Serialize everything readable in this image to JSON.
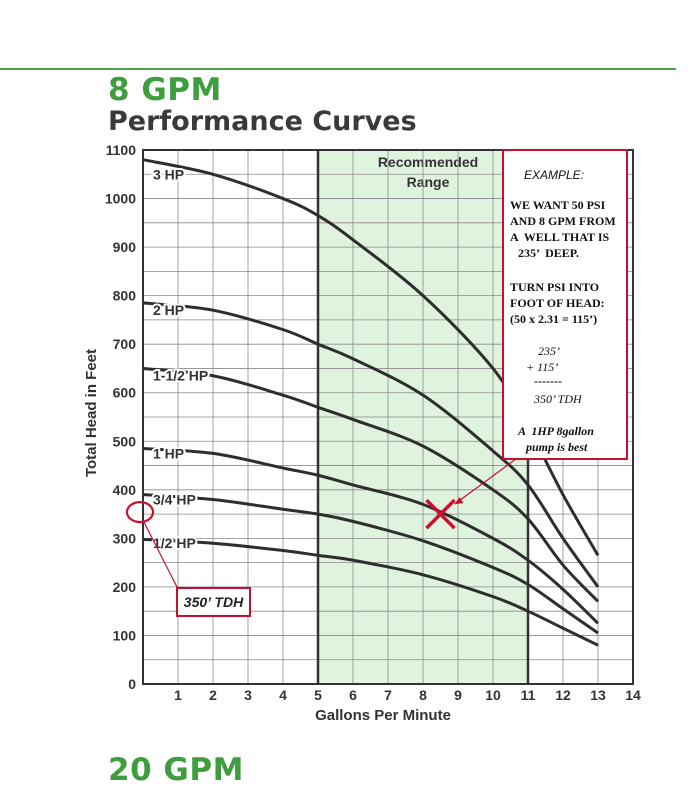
{
  "header": {
    "title": "8 GPM",
    "subtitle": "Performance Curves",
    "next_title": "20 GPM"
  },
  "colors": {
    "title_green": "#3e9e3e",
    "recommended_fill": "#dff3df",
    "annotation_red": "#c8102e",
    "curve": "#2e2e2e"
  },
  "chart_data": {
    "type": "line",
    "xlabel": "Gallons Per Minute",
    "ylabel": "Total Head in Feet",
    "xlim": [
      0,
      14
    ],
    "ylim": [
      0,
      1100
    ],
    "x_ticks": [
      "1",
      "2",
      "3",
      "4",
      "5",
      "6",
      "7",
      "8",
      "9",
      "10",
      "11",
      "12",
      "13",
      "14"
    ],
    "y_ticks": [
      "0",
      "100",
      "200",
      "300",
      "400",
      "500",
      "600",
      "700",
      "800",
      "900",
      "1000",
      "1100"
    ],
    "grid": true,
    "recommended_range": {
      "label_line1": "Recommended",
      "label_line2": "Range",
      "x_from": 5,
      "x_to": 11
    },
    "series": [
      {
        "name": "3 HP",
        "x": [
          0,
          2,
          4,
          5,
          6,
          8,
          10,
          11,
          12,
          13
        ],
        "values": [
          1080,
          1050,
          1000,
          965,
          915,
          800,
          650,
          530,
          390,
          265
        ]
      },
      {
        "name": "2 HP",
        "x": [
          0,
          2,
          4,
          5,
          6,
          8,
          10,
          11,
          12,
          13
        ],
        "values": [
          785,
          770,
          730,
          700,
          670,
          595,
          480,
          410,
          300,
          200
        ]
      },
      {
        "name": "1-1/2 HP",
        "x": [
          0,
          2,
          4,
          5,
          6,
          8,
          10,
          11,
          12,
          13
        ],
        "values": [
          650,
          635,
          595,
          570,
          545,
          490,
          400,
          340,
          245,
          170
        ]
      },
      {
        "name": "1 HP",
        "x": [
          0,
          2,
          4,
          5,
          6,
          8,
          10,
          11,
          12,
          13
        ],
        "values": [
          485,
          475,
          445,
          430,
          410,
          370,
          300,
          255,
          195,
          125
        ]
      },
      {
        "name": "3/4 HP",
        "x": [
          0,
          2,
          4,
          5,
          6,
          8,
          10,
          11,
          12,
          13
        ],
        "values": [
          390,
          380,
          360,
          350,
          335,
          295,
          240,
          205,
          155,
          105
        ]
      },
      {
        "name": "1/2 HP",
        "x": [
          0,
          2,
          4,
          5,
          6,
          8,
          10,
          11,
          12,
          13
        ],
        "values": [
          298,
          290,
          275,
          265,
          255,
          225,
          180,
          150,
          115,
          80
        ]
      }
    ],
    "marker_point": {
      "x": 8.5,
      "y": 350
    },
    "circled_point": {
      "x": 0,
      "y": 350
    }
  },
  "example": {
    "title": "EXAMPLE:",
    "l1": "WE WANT 50 PSI",
    "l2": "AND 8 GPM FROM",
    "l3": "A  WELL THAT IS",
    "l4": "235’  DEEP.",
    "l5": "TURN PSI INTO",
    "l6": "FOOT OF HEAD:",
    "l7": "(50 x 2.31 = 115’)",
    "l8": "235’",
    "l9": "+ 115’",
    "l10": "-------",
    "l11": "350’ TDH",
    "l12": "A  1HP 8gallon",
    "l13": "pump is best"
  },
  "callout": {
    "tdh_label": "350’ TDH"
  }
}
